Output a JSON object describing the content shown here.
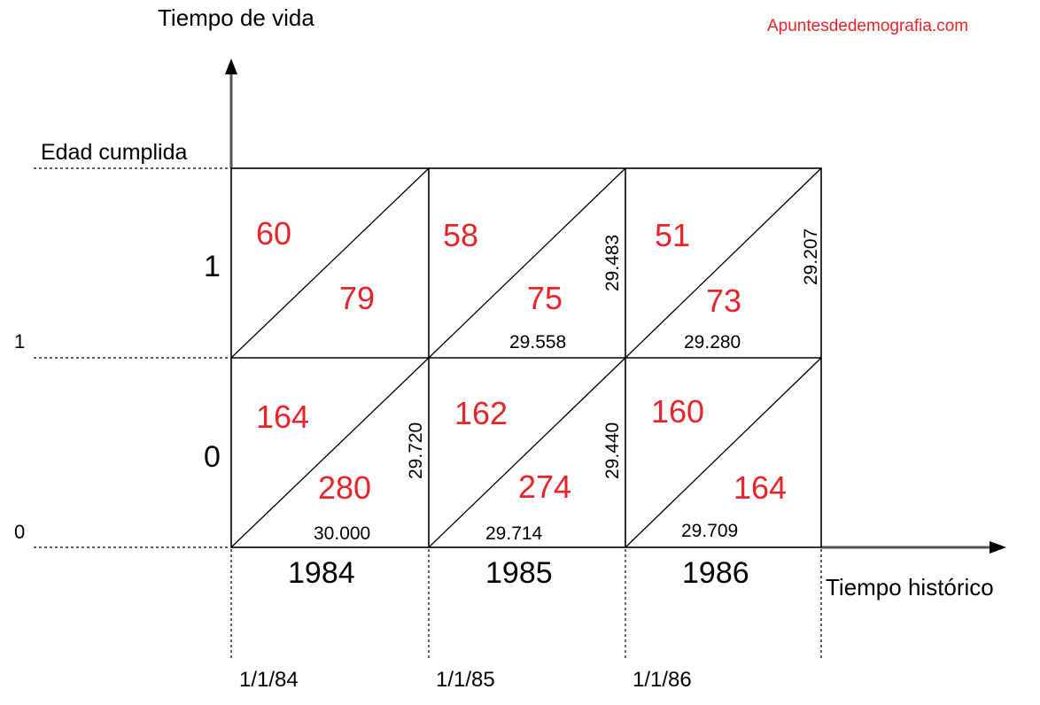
{
  "source_watermark": "Apuntesdedemografia.com",
  "axes": {
    "y_title": "Tiempo de vida",
    "x_title": "Tiempo histórico",
    "edad_label": "Edad cumplida",
    "age_ticks": [
      "1",
      "0"
    ],
    "age_row_labels": [
      "1",
      "0"
    ],
    "year_labels": [
      "1984",
      "1985",
      "1986"
    ],
    "date_labels": [
      "1/1/84",
      "1/1/85",
      "1/1/86"
    ]
  },
  "cells": {
    "r1_1984": {
      "upper": "60",
      "lower": "79"
    },
    "r1_1985": {
      "upper": "58",
      "lower": "75"
    },
    "r1_1986": {
      "upper": "51",
      "lower": "73"
    },
    "r0_1984": {
      "upper": "164",
      "lower": "280"
    },
    "r0_1985": {
      "upper": "162",
      "lower": "274"
    },
    "r0_1986": {
      "upper": "160",
      "lower": "164"
    }
  },
  "populations": {
    "bottom": [
      "30.000",
      "29.714",
      "29.709"
    ],
    "mid_horizontal": [
      "29.558",
      "29.280"
    ],
    "vertical_lower": [
      "29.720",
      "29.440"
    ],
    "vertical_upper": [
      "29.483",
      "29.207"
    ]
  },
  "colors": {
    "deaths": "#e8242a",
    "lines": "#000000",
    "axis": "#555555"
  }
}
